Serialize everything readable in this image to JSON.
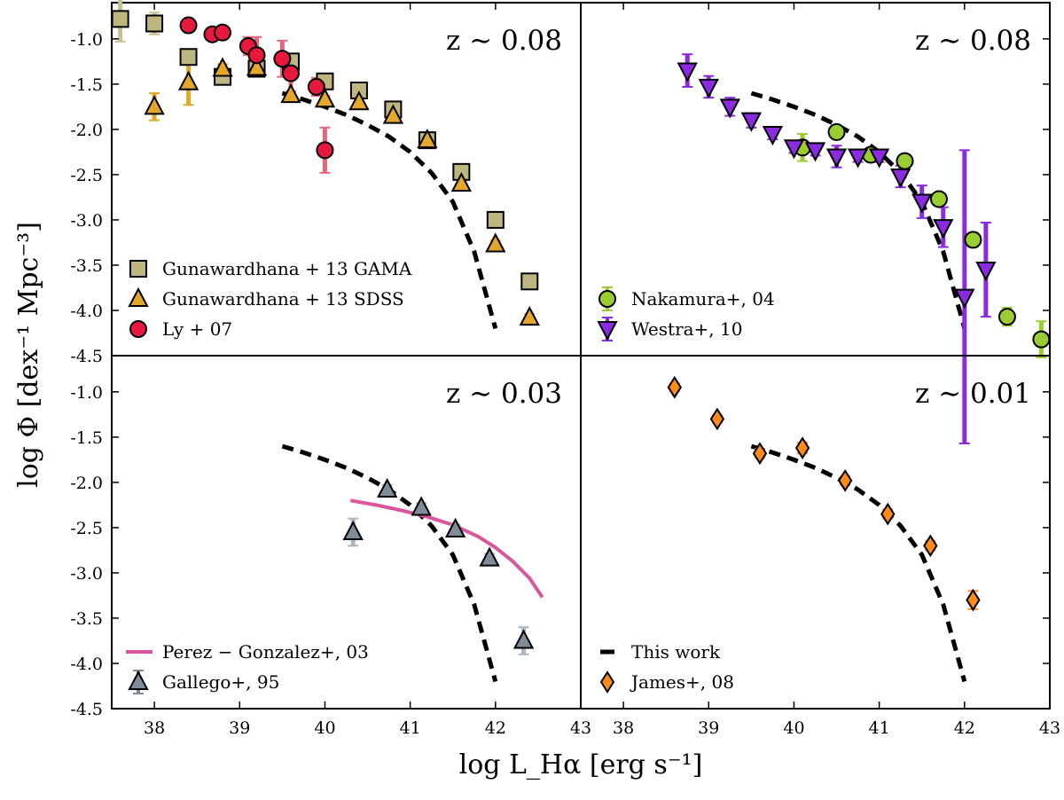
{
  "chart_data": {
    "type": "scatter",
    "ylabel": "log Φ [dex⁻¹ Mpc⁻³]",
    "xlabel": "log L_Hα [erg s⁻¹]",
    "x_ticks": [
      "38",
      "39",
      "40",
      "41",
      "42",
      "43"
    ],
    "x_ticks_right": [
      "38",
      "39",
      "40",
      "41",
      "42",
      "43"
    ],
    "y_ticks_top": [
      "-1.0",
      "-1.5",
      "-2.0",
      "-2.5",
      "-3.0",
      "-3.5",
      "-4.0",
      "-4.5"
    ],
    "y_ticks_bottom": [
      "-1.0",
      "-1.5",
      "-2.0",
      "-2.5",
      "-3.0",
      "-3.5",
      "-4.0",
      "-4.5"
    ],
    "xlim_left": [
      37.5,
      43
    ],
    "xlim_right": [
      37.5,
      43
    ],
    "ylim": [
      -4.5,
      -0.6
    ],
    "this_work": [
      [
        39.5,
        -1.6
      ],
      [
        39.75,
        -1.67
      ],
      [
        40.0,
        -1.75
      ],
      [
        40.25,
        -1.84
      ],
      [
        40.5,
        -1.95
      ],
      [
        40.75,
        -2.08
      ],
      [
        41.0,
        -2.25
      ],
      [
        41.25,
        -2.48
      ],
      [
        41.5,
        -2.8
      ],
      [
        41.75,
        -3.35
      ],
      [
        42.0,
        -4.2
      ]
    ],
    "panels": [
      {
        "id": "top-left",
        "label": "z ∼ 0.08",
        "show_fit": true,
        "fit_points": [
          [
            39.5,
            -1.6
          ],
          [
            39.75,
            -1.67
          ],
          [
            40.0,
            -1.75
          ],
          [
            40.25,
            -1.84
          ],
          [
            40.5,
            -1.95
          ],
          [
            40.75,
            -2.08
          ],
          [
            41.0,
            -2.25
          ],
          [
            41.25,
            -2.48
          ],
          [
            41.5,
            -2.8
          ],
          [
            41.75,
            -3.35
          ],
          [
            42.0,
            -4.2
          ]
        ],
        "legend": [
          {
            "label": "Gunawardhana + 13 GAMA",
            "marker": "square",
            "color": "#bdb67f"
          },
          {
            "label": "Gunawardhana + 13 SDSS",
            "marker": "triangle",
            "color": "#e3a82b"
          },
          {
            "label": "Ly + 07",
            "marker": "circle",
            "color": "#e8193f"
          }
        ],
        "series": [
          {
            "name": "Gunawardhana + 13 GAMA",
            "marker": "square",
            "color": "#bdb67f",
            "errcolor": "#c7c18f",
            "points": [
              [
                37.6,
                -0.78,
                0.25
              ],
              [
                38.0,
                -0.83,
                0.12
              ],
              [
                38.4,
                -1.2,
                0.06
              ],
              [
                38.8,
                -1.42,
                0.05
              ],
              [
                39.2,
                -1.33,
                0.04
              ],
              [
                39.6,
                -1.25,
                0.04
              ],
              [
                40.0,
                -1.47,
                0.04
              ],
              [
                40.4,
                -1.57,
                0.04
              ],
              [
                40.8,
                -1.78,
                0.04
              ],
              [
                41.2,
                -2.12,
                0.04
              ],
              [
                41.6,
                -2.47,
                0.04
              ],
              [
                42.0,
                -3.0,
                0.05
              ],
              [
                42.4,
                -3.68,
                0.06
              ]
            ]
          },
          {
            "name": "Gunawardhana + 13 SDSS",
            "marker": "triangle",
            "color": "#e3a82b",
            "errcolor": "#e3a82b",
            "points": [
              [
                38.0,
                -1.75,
                0.15
              ],
              [
                38.4,
                -1.48,
                0.25
              ],
              [
                38.8,
                -1.33,
                0.05
              ],
              [
                39.2,
                -1.32,
                0.04
              ],
              [
                39.6,
                -1.62,
                0.04
              ],
              [
                40.0,
                -1.67,
                0.04
              ],
              [
                40.4,
                -1.7,
                0.04
              ],
              [
                40.8,
                -1.85,
                0.04
              ],
              [
                41.2,
                -2.12,
                0.04
              ],
              [
                41.6,
                -2.6,
                0.04
              ],
              [
                42.0,
                -3.27,
                0.04
              ],
              [
                42.4,
                -4.08,
                0.04
              ]
            ]
          },
          {
            "name": "Ly + 07",
            "marker": "circle",
            "color": "#e8193f",
            "errcolor": "#e8667c",
            "points": [
              [
                38.4,
                -0.85,
                0.05
              ],
              [
                38.68,
                -0.95,
                0.05
              ],
              [
                38.8,
                -0.93,
                0.05
              ],
              [
                39.1,
                -1.08,
                0.1
              ],
              [
                39.2,
                -1.18,
                0.2
              ],
              [
                39.5,
                -1.22,
                0.2
              ],
              [
                39.6,
                -1.38,
                0.2
              ],
              [
                39.9,
                -1.53,
                0.1
              ],
              [
                40.0,
                -2.23,
                0.25
              ]
            ]
          }
        ]
      },
      {
        "id": "top-right",
        "label": "z ∼ 0.08",
        "show_fit": true,
        "fit_points": [
          [
            39.5,
            -1.6
          ],
          [
            39.75,
            -1.67
          ],
          [
            40.0,
            -1.75
          ],
          [
            40.25,
            -1.84
          ],
          [
            40.5,
            -1.95
          ],
          [
            40.75,
            -2.08
          ],
          [
            41.0,
            -2.25
          ],
          [
            41.25,
            -2.48
          ],
          [
            41.5,
            -2.8
          ],
          [
            41.75,
            -3.35
          ],
          [
            42.0,
            -4.2
          ]
        ],
        "legend": [
          {
            "label": "Nakamura+, 04",
            "marker": "circle",
            "color": "#9acd32"
          },
          {
            "label": "Westra+, 10",
            "marker": "triangle-down",
            "color": "#8a2be2"
          }
        ],
        "series": [
          {
            "name": "Nakamura+, 04",
            "marker": "circle",
            "color": "#9acd32",
            "errcolor": "#9acd32",
            "points": [
              [
                40.1,
                -2.2,
                0.15
              ],
              [
                40.5,
                -2.03,
                0.05
              ],
              [
                40.9,
                -2.28,
                0.05
              ],
              [
                41.3,
                -2.35,
                0.05
              ],
              [
                41.7,
                -2.77,
                0.05
              ],
              [
                42.1,
                -3.22,
                0.08
              ],
              [
                42.5,
                -4.07,
                0.1
              ],
              [
                42.9,
                -4.32,
                0.2
              ]
            ]
          },
          {
            "name": "Westra+, 10",
            "marker": "triangle-down",
            "color": "#8a2be2",
            "errcolor": "#8a2be2",
            "points": [
              [
                38.75,
                -1.35,
                0.18
              ],
              [
                39.0,
                -1.53,
                0.12
              ],
              [
                39.25,
                -1.75,
                0.1
              ],
              [
                39.5,
                -1.9,
                0.08
              ],
              [
                39.75,
                -2.05,
                0.06
              ],
              [
                40.0,
                -2.2,
                0.06
              ],
              [
                40.25,
                -2.23,
                0.06
              ],
              [
                40.5,
                -2.3,
                0.12
              ],
              [
                40.75,
                -2.3,
                0.06
              ],
              [
                41.0,
                -2.3,
                0.06
              ],
              [
                41.25,
                -2.52,
                0.12
              ],
              [
                41.5,
                -2.8,
                0.18
              ],
              [
                41.75,
                -3.08,
                0.22
              ],
              [
                42.0,
                -3.85,
                1.62
              ],
              [
                42.25,
                -3.55,
                0.52
              ]
            ]
          }
        ]
      },
      {
        "id": "bottom-left",
        "label": "z ∼ 0.03",
        "show_fit": true,
        "fit_points": [
          [
            39.5,
            -1.6
          ],
          [
            39.75,
            -1.67
          ],
          [
            40.0,
            -1.75
          ],
          [
            40.25,
            -1.84
          ],
          [
            40.5,
            -1.95
          ],
          [
            40.75,
            -2.08
          ],
          [
            41.0,
            -2.25
          ],
          [
            41.25,
            -2.48
          ],
          [
            41.5,
            -2.8
          ],
          [
            41.75,
            -3.35
          ],
          [
            42.0,
            -4.2
          ]
        ],
        "legend": [
          {
            "label": "Perez − Gonzalez+, 03",
            "marker": "line",
            "color": "#d9569d"
          },
          {
            "label": "Gallego+, 95",
            "marker": "triangle",
            "color": "#7f8c99"
          }
        ],
        "curve": {
          "name": "Perez − Gonzalez+, 03",
          "color": "#d9569d",
          "points": [
            [
              40.3,
              -2.2
            ],
            [
              40.6,
              -2.25
            ],
            [
              40.9,
              -2.31
            ],
            [
              41.2,
              -2.38
            ],
            [
              41.5,
              -2.47
            ],
            [
              41.8,
              -2.6
            ],
            [
              42.0,
              -2.72
            ],
            [
              42.2,
              -2.87
            ],
            [
              42.4,
              -3.06
            ],
            [
              42.55,
              -3.27
            ]
          ]
        },
        "series": [
          {
            "name": "Gallego+, 95",
            "marker": "triangle",
            "color": "#7f8c99",
            "errcolor": "#a9b6c4",
            "points": [
              [
                40.33,
                -2.55,
                0.15
              ],
              [
                40.73,
                -2.08,
                0.05
              ],
              [
                41.13,
                -2.28,
                0.05
              ],
              [
                41.53,
                -2.52,
                0.05
              ],
              [
                41.93,
                -2.84,
                0.05
              ],
              [
                42.33,
                -3.75,
                0.15
              ]
            ]
          }
        ]
      },
      {
        "id": "bottom-right",
        "label": "z ∼ 0.01",
        "show_fit": true,
        "fit_points": [
          [
            39.5,
            -1.6
          ],
          [
            39.75,
            -1.67
          ],
          [
            40.0,
            -1.75
          ],
          [
            40.25,
            -1.84
          ],
          [
            40.5,
            -1.95
          ],
          [
            40.75,
            -2.08
          ],
          [
            41.0,
            -2.25
          ],
          [
            41.25,
            -2.48
          ],
          [
            41.5,
            -2.8
          ],
          [
            41.75,
            -3.35
          ],
          [
            42.0,
            -4.2
          ]
        ],
        "legend": [
          {
            "label": "This work",
            "marker": "dash",
            "color": "#000000"
          },
          {
            "label": "James+, 08",
            "marker": "diamond",
            "color": "#ff8c1a"
          }
        ],
        "series": [
          {
            "name": "James+, 08",
            "marker": "diamond",
            "color": "#ff8c1a",
            "errcolor": "#ff8c1a",
            "points": [
              [
                38.6,
                -0.95,
                0.04
              ],
              [
                39.1,
                -1.3,
                0.04
              ],
              [
                39.6,
                -1.68,
                0.05
              ],
              [
                40.1,
                -1.62,
                0.06
              ],
              [
                40.6,
                -1.98,
                0.05
              ],
              [
                41.1,
                -2.35,
                0.05
              ],
              [
                41.6,
                -2.7,
                0.05
              ],
              [
                42.1,
                -3.3,
                0.1
              ]
            ]
          }
        ]
      }
    ]
  }
}
